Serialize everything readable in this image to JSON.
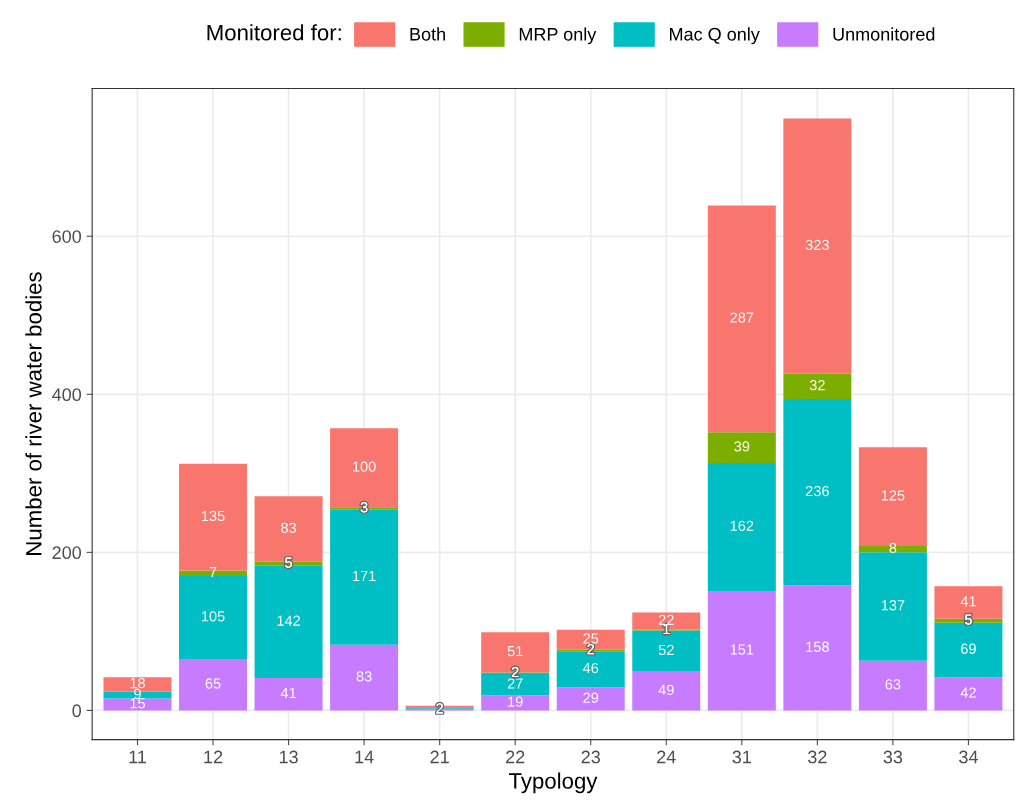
{
  "chart_data": {
    "type": "bar",
    "stacked": true,
    "xlabel": "Typology",
    "ylabel": "Number of river water bodies",
    "legend_title": "Monitored for:",
    "legend": "top",
    "categories": [
      "11",
      "12",
      "13",
      "14",
      "21",
      "22",
      "23",
      "24",
      "31",
      "32",
      "33",
      "34"
    ],
    "series": [
      {
        "name": "Unmonitored",
        "color": "#c77cff",
        "values": [
          15,
          65,
          41,
          83,
          2,
          19,
          29,
          49,
          151,
          158,
          63,
          42
        ],
        "value_labels": [
          "15",
          "65",
          "41",
          "83",
          "2",
          "19",
          "29",
          "49",
          "151",
          "158",
          "63",
          "42"
        ]
      },
      {
        "name": "Mac Q only",
        "color": "#00bfc4",
        "values": [
          9,
          105,
          142,
          171,
          1,
          27,
          46,
          52,
          162,
          236,
          137,
          69
        ],
        "value_labels": [
          "9",
          "105",
          "142",
          "171",
          null,
          "27",
          "46",
          "52",
          "162",
          "236",
          "137",
          "69"
        ]
      },
      {
        "name": "MRP only",
        "color": "#7cae00",
        "values": [
          null,
          7,
          5,
          3,
          1,
          2,
          2,
          1,
          39,
          32,
          8,
          5
        ],
        "value_labels": [
          null,
          "7",
          "5",
          "3",
          null,
          "2",
          "2",
          "1",
          "39",
          "32",
          "8",
          "5"
        ]
      },
      {
        "name": "Both",
        "color": "#f8766d",
        "values": [
          18,
          135,
          83,
          100,
          2,
          51,
          25,
          22,
          287,
          323,
          125,
          41
        ],
        "value_labels": [
          "18",
          "135",
          "83",
          "100",
          null,
          "51",
          "25",
          "22",
          "287",
          "323",
          "125",
          "41"
        ]
      }
    ],
    "ylim": [
      -37,
      787
    ],
    "yticks": [
      0,
      200,
      400,
      600
    ],
    "grid": true
  }
}
